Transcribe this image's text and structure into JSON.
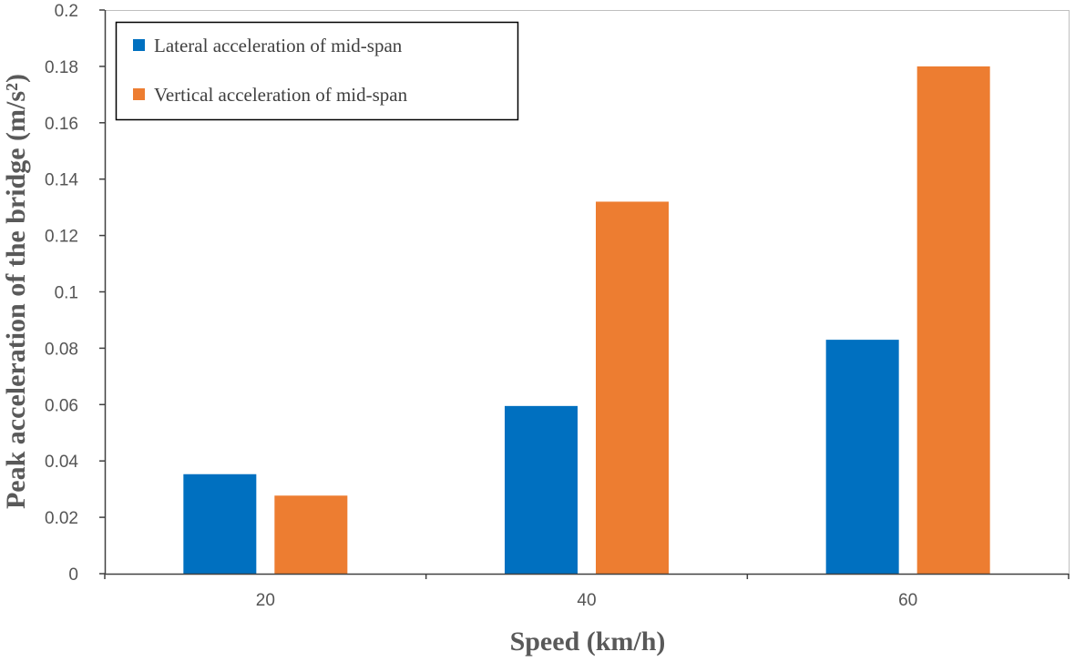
{
  "chart_data": {
    "type": "bar",
    "title": "",
    "xlabel": "Speed (km/h)",
    "ylabel": "Peak acceleration of the bridge (m/s²)",
    "categories": [
      "20",
      "40",
      "60"
    ],
    "ylim": [
      0,
      0.2
    ],
    "yticks": [
      "0",
      "0.02",
      "0.04",
      "0.06",
      "0.08",
      "0.1",
      "0.12",
      "0.14",
      "0.16",
      "0.18",
      "0.2"
    ],
    "grid": false,
    "legend_position": "top-left",
    "series": [
      {
        "name": "Lateral acceleration of mid-span",
        "color": "#0070C0",
        "values": [
          0.0353,
          0.0595,
          0.083
        ]
      },
      {
        "name": "Vertical acceleration of mid-span",
        "color": "#ED7D31",
        "values": [
          0.0277,
          0.132,
          0.18
        ]
      }
    ]
  }
}
